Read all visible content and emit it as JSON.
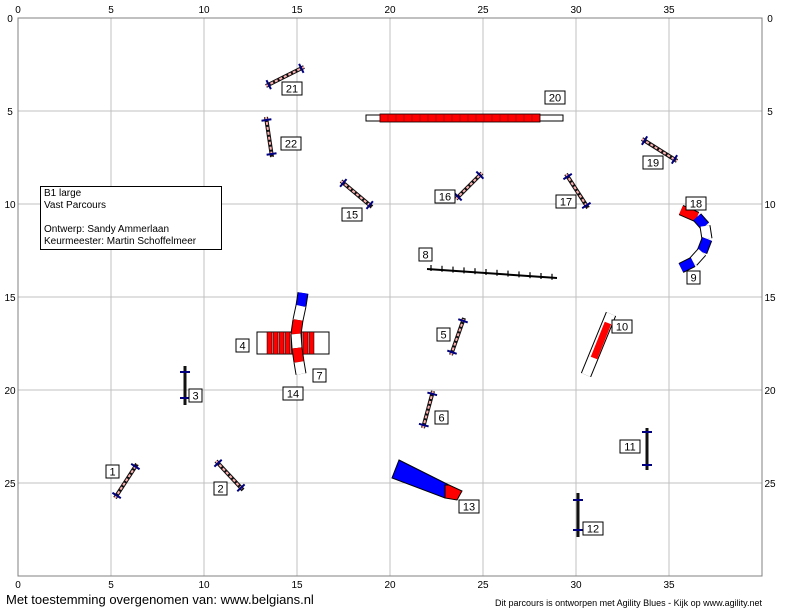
{
  "course": {
    "info": {
      "class_line": "B1 large",
      "course_type": "Vast Parcours",
      "designer": "Ontwerp: Sandy Ammerlaan",
      "judge": "Keurmeester: Martin Schoffelmeer"
    },
    "axis": {
      "x_ticks": [
        "0",
        "5",
        "10",
        "15",
        "20",
        "25",
        "30",
        "35"
      ],
      "y_ticks": [
        "0",
        "5",
        "10",
        "15",
        "20",
        "25"
      ],
      "x_max": 40,
      "y_max": 30
    },
    "obstacles": [
      {
        "num": "1",
        "type": "jump"
      },
      {
        "num": "2",
        "type": "jump"
      },
      {
        "num": "3",
        "type": "jump"
      },
      {
        "num": "4",
        "type": "tunnel"
      },
      {
        "num": "5",
        "type": "jump"
      },
      {
        "num": "6",
        "type": "jump"
      },
      {
        "num": "7",
        "type": "tunnel"
      },
      {
        "num": "8",
        "type": "weave"
      },
      {
        "num": "9",
        "type": "tunnel"
      },
      {
        "num": "10",
        "type": "seesaw"
      },
      {
        "num": "11",
        "type": "jump"
      },
      {
        "num": "12",
        "type": "jump"
      },
      {
        "num": "13",
        "type": "chute"
      },
      {
        "num": "14",
        "type": "tunnel"
      },
      {
        "num": "15",
        "type": "jump"
      },
      {
        "num": "16",
        "type": "jump"
      },
      {
        "num": "17",
        "type": "jump"
      },
      {
        "num": "18",
        "type": "tunnel"
      },
      {
        "num": "19",
        "type": "jump"
      },
      {
        "num": "20",
        "type": "dogwalk"
      },
      {
        "num": "21",
        "type": "jump"
      },
      {
        "num": "22",
        "type": "jump"
      }
    ],
    "colors": {
      "red": "#ff0000",
      "blue": "#0000ff",
      "navy": "#000080",
      "grid": "#c0c0c0"
    }
  },
  "footer": {
    "permission": "Met toestemming overgenomen van: www.belgians.nl",
    "software": "Dit parcours is ontworpen met Agility Blues - Kijk op www.agility.net"
  }
}
